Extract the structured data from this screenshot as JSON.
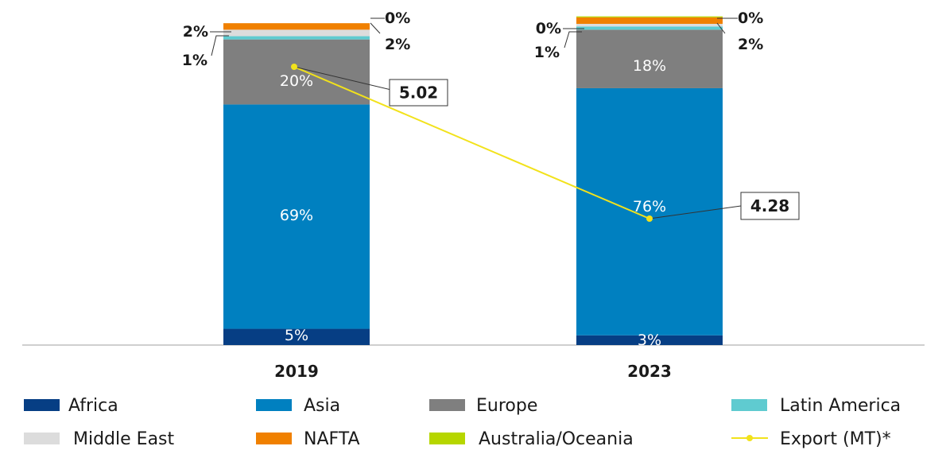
{
  "chart_data": {
    "type": "bar",
    "stacked": true,
    "categories": [
      "2019",
      "2023"
    ],
    "series": [
      {
        "name": "Africa",
        "color": "#063e84",
        "values": [
          5,
          3
        ],
        "labels": [
          "5%",
          "3%"
        ]
      },
      {
        "name": "Asia",
        "color": "#0080c0",
        "values": [
          69,
          76
        ],
        "labels": [
          "69%",
          "76%"
        ]
      },
      {
        "name": "Europe",
        "color": "#7f7f7f",
        "values": [
          20,
          18
        ],
        "labels": [
          "20%",
          "18%"
        ]
      },
      {
        "name": "Latin America",
        "color": "#5fcbd0",
        "values": [
          1,
          1
        ],
        "labels": [
          "1%",
          "1%"
        ]
      },
      {
        "name": "Middle East",
        "color": "#dcdcdc",
        "values": [
          2,
          0
        ],
        "labels": [
          "2%",
          "0%"
        ]
      },
      {
        "name": "NAFTA",
        "color": "#f08000",
        "values": [
          2,
          2
        ],
        "labels": [
          "2%",
          "2%"
        ]
      },
      {
        "name": "Australia/Oceania",
        "color": "#b6d600",
        "values": [
          0,
          0
        ],
        "labels": [
          "0%",
          "0%"
        ]
      }
    ],
    "line": {
      "name": "Export (MT)*",
      "color": "#f2e21b",
      "values": [
        5.02,
        4.28
      ],
      "labels": [
        "5.02",
        "4.28"
      ]
    },
    "legend_position": "bottom"
  }
}
